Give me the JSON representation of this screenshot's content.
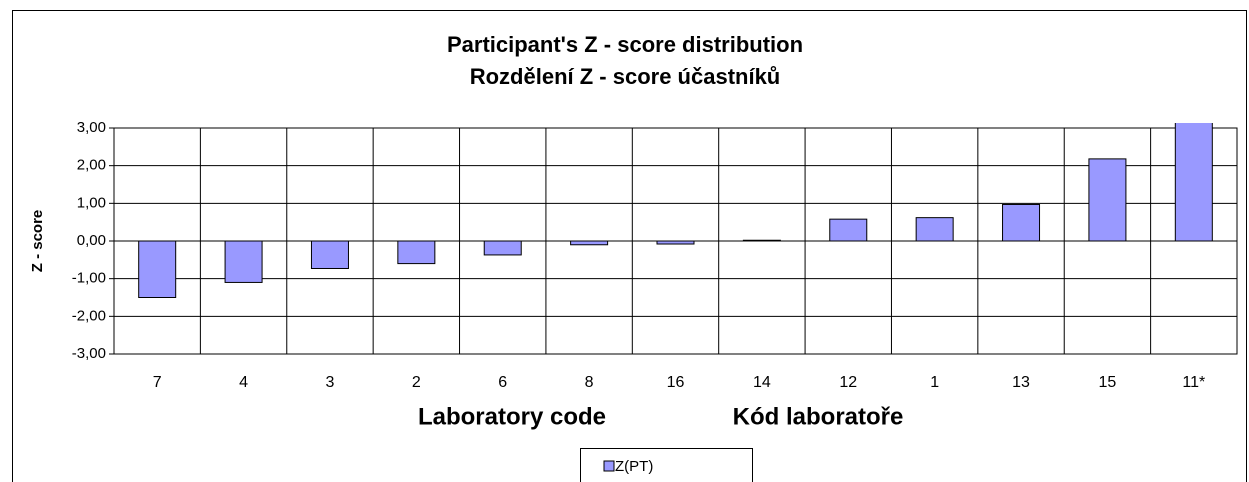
{
  "chart_data": {
    "type": "bar",
    "title": [
      "Participant's Z - score distribution",
      "Rozdělení Z - score účastníků"
    ],
    "ylabel": "Z - score",
    "xlabel": [
      "Laboratory code",
      "Kód laboratoře"
    ],
    "categories": [
      "7",
      "4",
      "3",
      "2",
      "6",
      "8",
      "16",
      "14",
      "12",
      "1",
      "13",
      "15",
      "11*"
    ],
    "series": [
      {
        "name": "Z(PT)",
        "color": "#9999ff",
        "values": [
          -1.5,
          -1.1,
          -0.73,
          -0.6,
          -0.37,
          -0.1,
          -0.08,
          0.02,
          0.58,
          0.62,
          0.97,
          2.18,
          3.3
        ]
      }
    ],
    "ylim": [
      -3,
      3
    ],
    "yticks": [
      {
        "value": 3,
        "label": "3,00"
      },
      {
        "value": 2,
        "label": "2,00"
      },
      {
        "value": 1,
        "label": "1,00"
      },
      {
        "value": 0,
        "label": "0,00"
      },
      {
        "value": -1,
        "label": "-1,00"
      },
      {
        "value": -2,
        "label": "-2,00"
      },
      {
        "value": -3,
        "label": "-3,00"
      }
    ],
    "grid": true
  }
}
